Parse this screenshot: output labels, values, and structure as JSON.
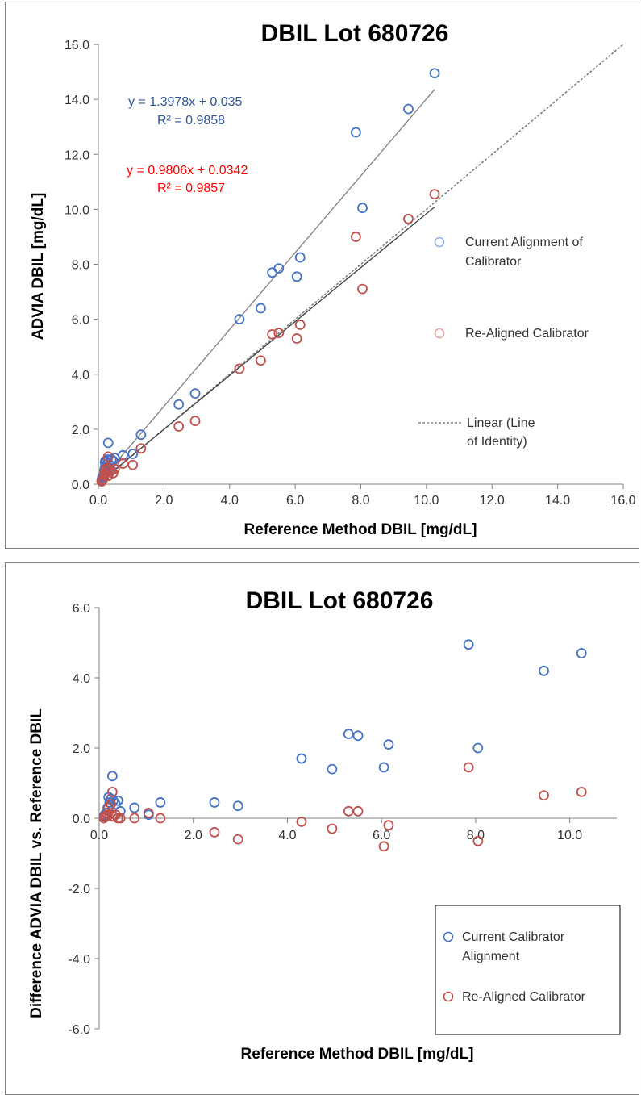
{
  "chart_data": [
    {
      "type": "scatter",
      "title": "DBIL Lot 680726",
      "xlabel": "Reference Method DBIL [mg/dL]",
      "ylabel": "ADVIA DBIL [mg/dL]",
      "xlim": [
        0,
        16
      ],
      "ylim": [
        0,
        16
      ],
      "xticks": [
        "0.0",
        "2.0",
        "4.0",
        "6.0",
        "8.0",
        "10.0",
        "12.0",
        "14.0",
        "16.0"
      ],
      "yticks": [
        "0.0",
        "2.0",
        "4.0",
        "6.0",
        "8.0",
        "10.0",
        "12.0",
        "14.0",
        "16.0"
      ],
      "grid": false,
      "legend_position": "right",
      "colors": {
        "current": "#4472c4",
        "realigned": "#c0504d",
        "trend": "#808080",
        "identity": "#808080"
      },
      "series": [
        {
          "name": "Current Alignment of Calibrator",
          "x": [
            0.1,
            0.12,
            0.15,
            0.18,
            0.2,
            0.2,
            0.22,
            0.25,
            0.28,
            0.3,
            0.3,
            0.35,
            0.4,
            0.45,
            0.5,
            0.75,
            1.05,
            1.3,
            2.45,
            2.95,
            4.3,
            4.95,
            5.3,
            5.5,
            6.05,
            6.15,
            7.85,
            8.05,
            9.45,
            10.25
          ],
          "y": [
            0.15,
            0.25,
            0.3,
            0.5,
            0.6,
            0.8,
            0.85,
            0.7,
            0.9,
            1.5,
            0.5,
            0.7,
            0.9,
            0.85,
            0.95,
            1.05,
            1.1,
            1.8,
            2.9,
            3.3,
            6.0,
            6.4,
            7.7,
            7.85,
            7.55,
            8.25,
            12.8,
            10.05,
            13.65,
            14.95
          ]
        },
        {
          "name": "Re-Aligned Calibrator",
          "x": [
            0.1,
            0.12,
            0.15,
            0.18,
            0.2,
            0.2,
            0.22,
            0.25,
            0.28,
            0.3,
            0.3,
            0.35,
            0.4,
            0.45,
            0.5,
            0.75,
            1.05,
            1.3,
            2.45,
            2.95,
            4.3,
            4.95,
            5.3,
            5.5,
            6.05,
            6.15,
            7.85,
            8.05,
            9.45,
            10.25
          ],
          "y": [
            0.1,
            0.15,
            0.2,
            0.3,
            0.35,
            0.4,
            0.55,
            0.5,
            0.6,
            1.0,
            0.3,
            0.45,
            0.5,
            0.4,
            0.55,
            0.75,
            0.7,
            1.3,
            2.1,
            2.3,
            4.2,
            4.5,
            5.45,
            5.5,
            5.3,
            5.8,
            9.0,
            7.1,
            9.65,
            10.55
          ]
        },
        {
          "name": "Linear (Line of Identity)",
          "x": [
            0,
            16
          ],
          "y": [
            0,
            16
          ]
        }
      ],
      "annotations": [
        {
          "text": "y = 1.3978x + 0.035",
          "color": "#2f5597"
        },
        {
          "text": "R² = 0.9858",
          "color": "#2f5597"
        },
        {
          "text": "y = 0.9806x + 0.0342",
          "color": "#ff0000"
        },
        {
          "text": "R² = 0.9857",
          "color": "#ff0000"
        }
      ],
      "trendlines": [
        {
          "slope": 1.3978,
          "intercept": 0.035,
          "x": [
            0,
            10.25
          ]
        },
        {
          "slope": 0.9806,
          "intercept": 0.0342,
          "x": [
            0,
            10.25
          ]
        }
      ]
    },
    {
      "type": "scatter",
      "title": "DBIL Lot 680726",
      "xlabel": "Reference Method DBIL [mg/dL]",
      "ylabel": "Difference ADVIA DBIL vs. Reference DBIL",
      "xlim": [
        0,
        11
      ],
      "ylim": [
        -6,
        6
      ],
      "xticks": [
        "0.0",
        "2.0",
        "4.0",
        "6.0",
        "8.0",
        "10.0"
      ],
      "yticks": [
        "-6.0",
        "-4.0",
        "-2.0",
        "0.0",
        "2.0",
        "4.0",
        "6.0"
      ],
      "grid": false,
      "legend_position": "bottom-right",
      "colors": {
        "current": "#4472c4",
        "realigned": "#c0504d"
      },
      "series": [
        {
          "name": "Current Calibrator Alignment",
          "x": [
            0.1,
            0.12,
            0.15,
            0.18,
            0.2,
            0.22,
            0.25,
            0.28,
            0.3,
            0.35,
            0.4,
            0.45,
            0.75,
            1.05,
            1.3,
            2.45,
            2.95,
            4.3,
            4.95,
            5.3,
            5.5,
            6.05,
            6.15,
            7.85,
            8.05,
            9.45,
            10.25
          ],
          "y": [
            0.05,
            0.1,
            0.15,
            0.3,
            0.6,
            0.45,
            0.55,
            1.2,
            0.5,
            0.4,
            0.5,
            0.2,
            0.3,
            0.1,
            0.45,
            0.45,
            0.35,
            1.7,
            1.4,
            2.4,
            2.35,
            1.45,
            2.1,
            4.95,
            2.0,
            4.2,
            4.7
          ]
        },
        {
          "name": "Re-Aligned Calibrator",
          "x": [
            0.1,
            0.12,
            0.15,
            0.18,
            0.2,
            0.22,
            0.25,
            0.28,
            0.3,
            0.35,
            0.4,
            0.45,
            0.75,
            1.05,
            1.3,
            2.45,
            2.95,
            4.3,
            4.95,
            5.3,
            5.5,
            6.05,
            6.15,
            7.85,
            8.05,
            9.45,
            10.25
          ],
          "y": [
            0.0,
            0.05,
            0.05,
            0.1,
            0.3,
            0.1,
            0.4,
            0.75,
            0.05,
            0.1,
            0.0,
            0.0,
            0.0,
            0.15,
            0.0,
            -0.4,
            -0.6,
            -0.1,
            -0.3,
            0.2,
            0.2,
            -0.8,
            -0.2,
            1.45,
            -0.65,
            0.65,
            0.75
          ]
        }
      ]
    }
  ]
}
